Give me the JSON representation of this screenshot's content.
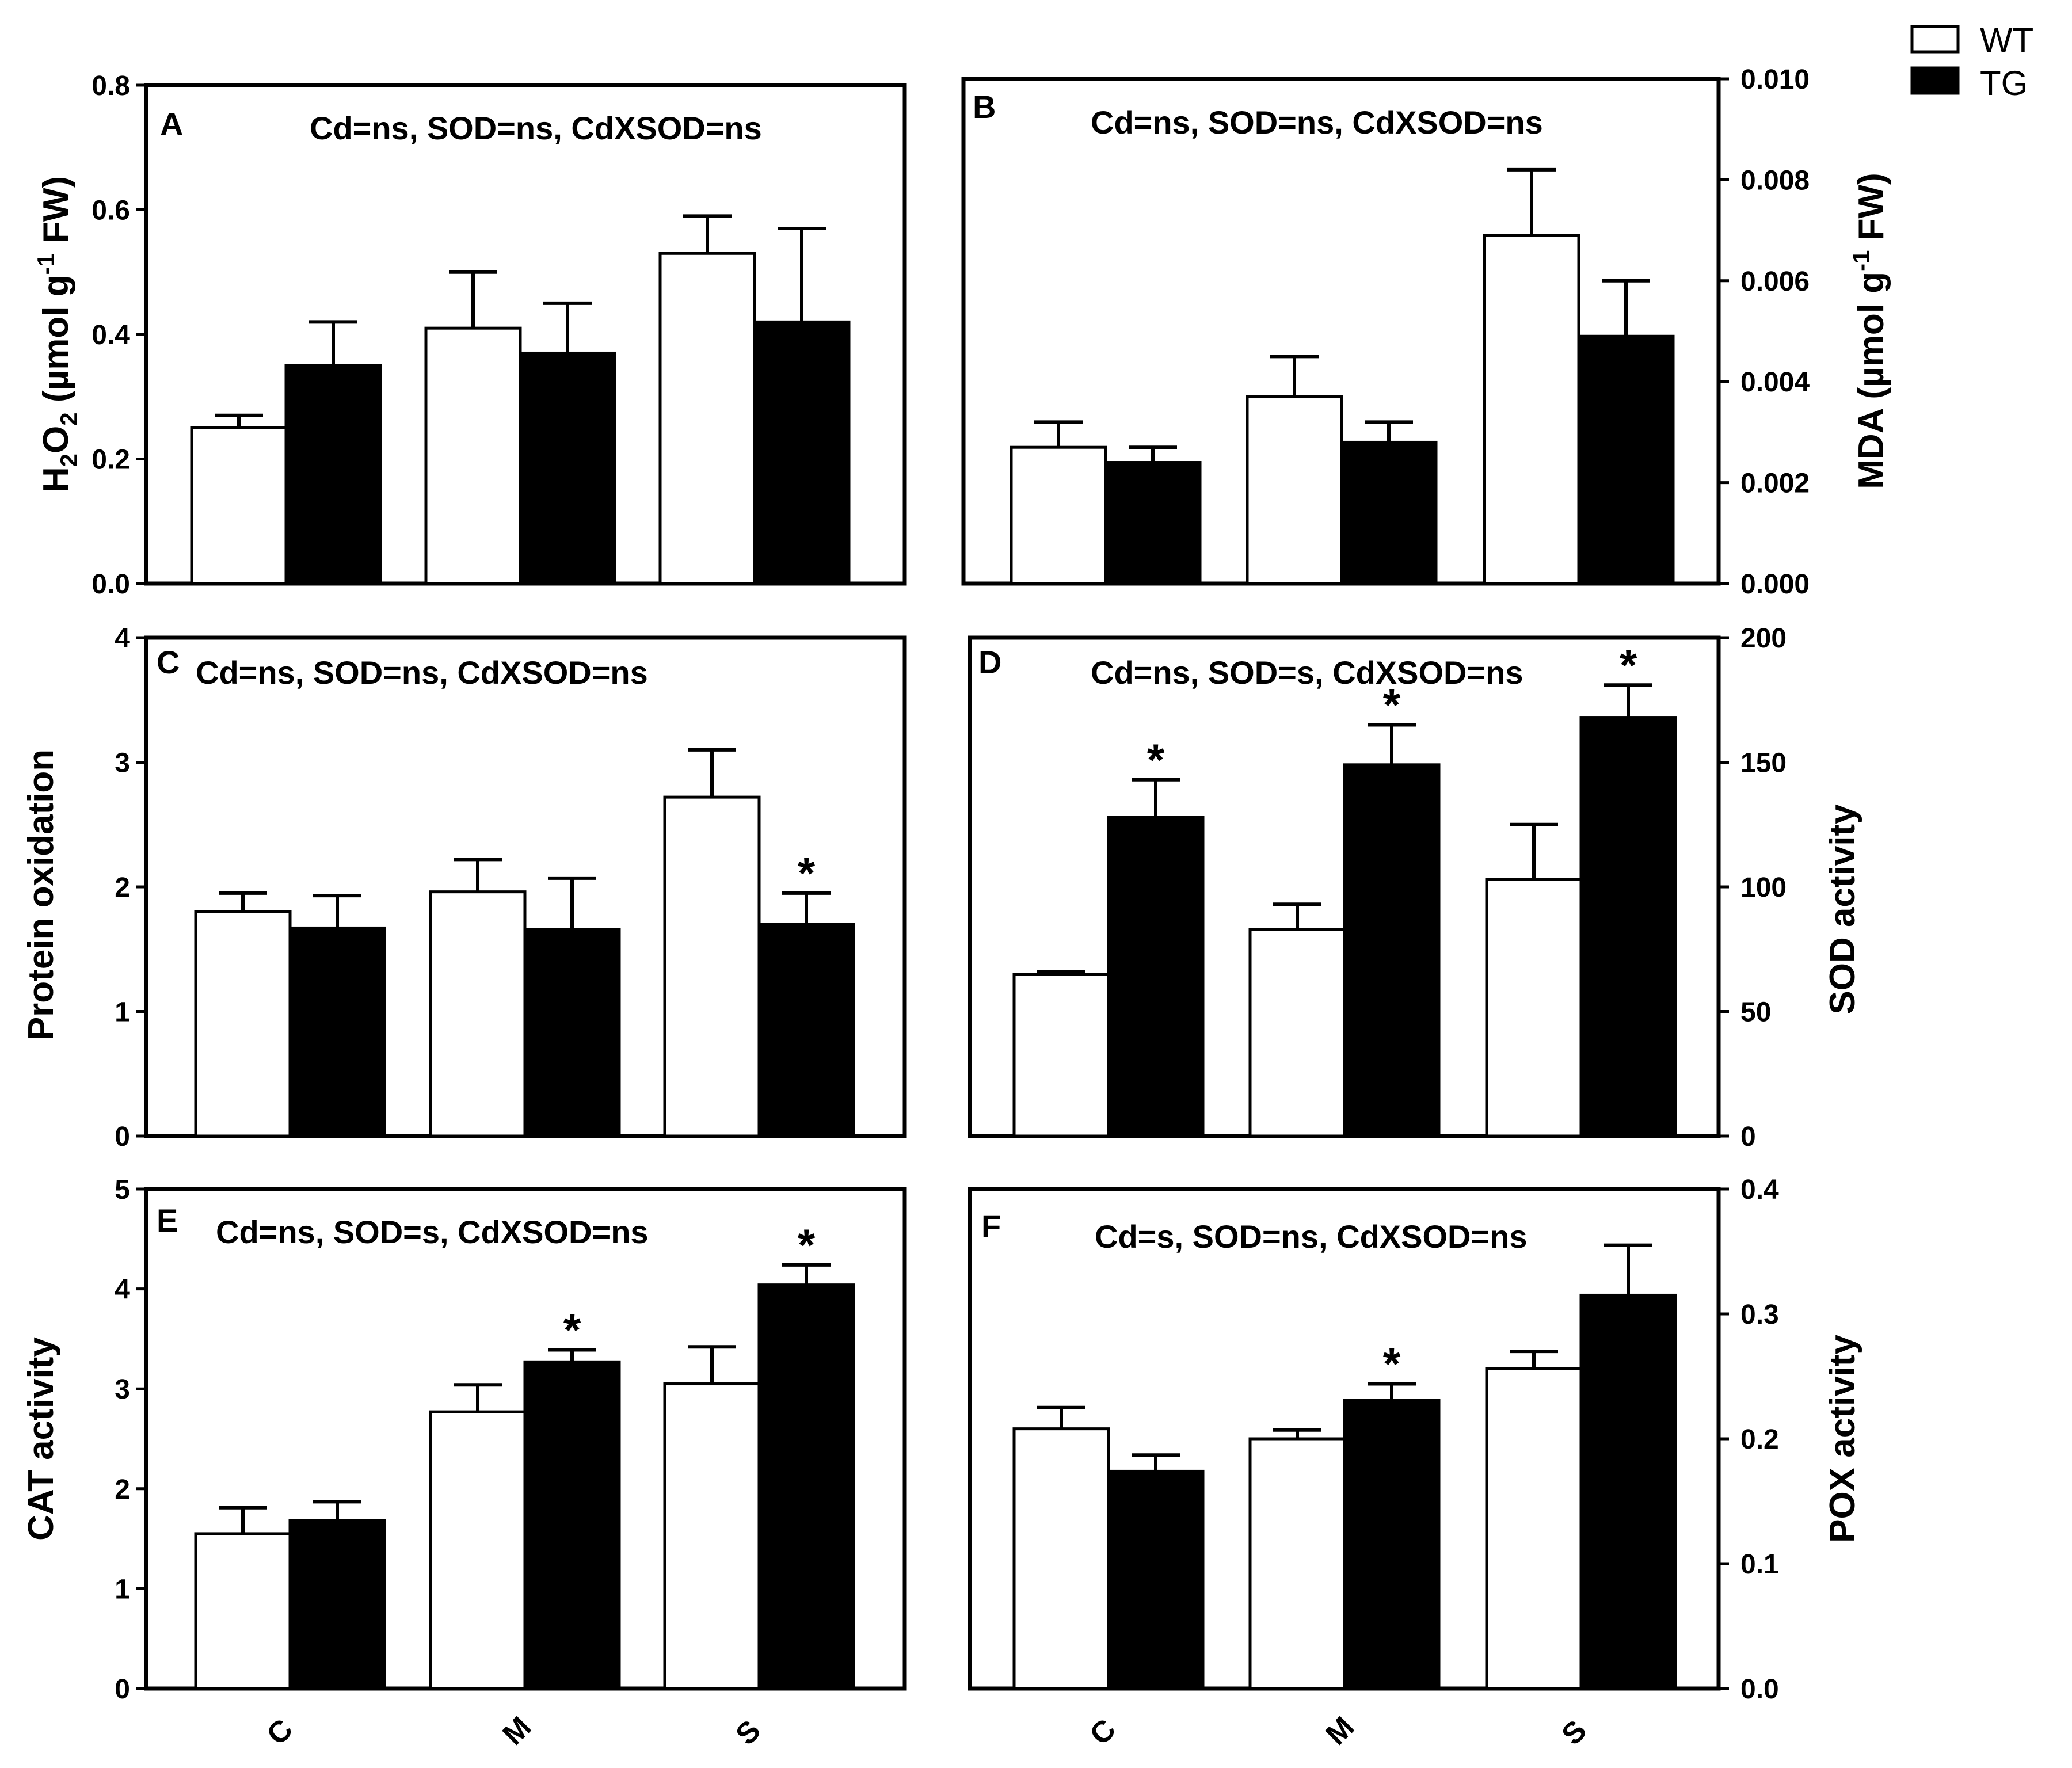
{
  "legend": {
    "entries": [
      {
        "label": "WT",
        "color": "#ffffff"
      },
      {
        "label": "TG",
        "color": "#000000"
      }
    ]
  },
  "chart_data": [
    {
      "type": "bar",
      "panel": "A",
      "stats_text": "Cd=ns, SOD=ns, CdXSOD=ns",
      "ylabel": "H2O2 (µmol g-1 FW)",
      "categories": [
        "C",
        "M",
        "S"
      ],
      "ylim": [
        0,
        0.8
      ],
      "yticks": [
        0.0,
        0.2,
        0.4,
        0.6,
        0.8
      ],
      "tick_labels": [
        "0.0",
        "0.2",
        "0.4",
        "0.6",
        "0.8"
      ],
      "series": [
        {
          "name": "WT",
          "values": [
            0.25,
            0.41,
            0.53
          ],
          "errors": [
            0.02,
            0.09,
            0.06
          ],
          "stars": [
            false,
            false,
            false
          ]
        },
        {
          "name": "TG",
          "values": [
            0.35,
            0.37,
            0.42
          ],
          "errors": [
            0.07,
            0.08,
            0.15
          ],
          "stars": [
            false,
            false,
            false
          ]
        }
      ]
    },
    {
      "type": "bar",
      "panel": "B",
      "stats_text": "Cd=ns, SOD=ns, CdXSOD=ns",
      "ylabel": "MDA (µmol g-1 FW)",
      "categories": [
        "C",
        "M",
        "S"
      ],
      "ylim": [
        0,
        0.01
      ],
      "yticks": [
        0.0,
        0.002,
        0.004,
        0.006,
        0.008,
        0.01
      ],
      "tick_labels": [
        "0.000",
        "0.002",
        "0.004",
        "0.006",
        "0.008",
        "0.010"
      ],
      "series": [
        {
          "name": "WT",
          "values": [
            0.0027,
            0.0037,
            0.0069
          ],
          "errors": [
            0.0005,
            0.0008,
            0.0013
          ],
          "stars": [
            false,
            false,
            false
          ]
        },
        {
          "name": "TG",
          "values": [
            0.0024,
            0.0028,
            0.0049
          ],
          "errors": [
            0.0003,
            0.0004,
            0.0011
          ],
          "stars": [
            false,
            false,
            false
          ]
        }
      ]
    },
    {
      "type": "bar",
      "panel": "C",
      "stats_text": "Cd=ns, SOD=ns, CdXSOD=ns",
      "ylabel": "Protein oxidation",
      "categories": [
        "C",
        "M",
        "S"
      ],
      "ylim": [
        0,
        4
      ],
      "yticks": [
        0,
        1,
        2,
        3,
        4
      ],
      "tick_labels": [
        "0",
        "1",
        "2",
        "3",
        "4"
      ],
      "series": [
        {
          "name": "WT",
          "values": [
            1.8,
            1.96,
            2.72
          ],
          "errors": [
            0.15,
            0.26,
            0.38
          ],
          "stars": [
            false,
            false,
            false
          ]
        },
        {
          "name": "TG",
          "values": [
            1.67,
            1.66,
            1.7
          ],
          "errors": [
            0.26,
            0.41,
            0.25
          ],
          "stars": [
            false,
            false,
            true
          ]
        }
      ]
    },
    {
      "type": "bar",
      "panel": "D",
      "stats_text": "Cd=ns, SOD=s, CdXSOD=ns",
      "ylabel": "SOD activity",
      "categories": [
        "C",
        "M",
        "S"
      ],
      "ylim": [
        0,
        200
      ],
      "yticks": [
        0,
        50,
        100,
        150,
        200
      ],
      "tick_labels": [
        "0",
        "50",
        "100",
        "150",
        "200"
      ],
      "series": [
        {
          "name": "WT",
          "values": [
            65,
            83,
            103
          ],
          "errors": [
            1,
            10,
            22
          ],
          "stars": [
            false,
            false,
            false
          ]
        },
        {
          "name": "TG",
          "values": [
            128,
            149,
            168
          ],
          "errors": [
            15,
            16,
            13
          ],
          "stars": [
            true,
            true,
            true
          ]
        }
      ]
    },
    {
      "type": "bar",
      "panel": "E",
      "stats_text": "Cd=ns, SOD=s, CdXSOD=ns",
      "ylabel": "CAT activity",
      "categories": [
        "C",
        "M",
        "S"
      ],
      "ylim": [
        0,
        5
      ],
      "yticks": [
        0,
        1,
        2,
        3,
        4,
        5
      ],
      "tick_labels": [
        "0",
        "1",
        "2",
        "3",
        "4",
        "5"
      ],
      "series": [
        {
          "name": "WT",
          "values": [
            1.55,
            2.77,
            3.05
          ],
          "errors": [
            0.26,
            0.27,
            0.37
          ],
          "stars": [
            false,
            false,
            false
          ]
        },
        {
          "name": "TG",
          "values": [
            1.68,
            3.27,
            4.04
          ],
          "errors": [
            0.19,
            0.12,
            0.2
          ],
          "stars": [
            false,
            true,
            true
          ]
        }
      ]
    },
    {
      "type": "bar",
      "panel": "F",
      "stats_text": "Cd=s, SOD=ns, CdXSOD=ns",
      "ylabel": "POX activity",
      "categories": [
        "C",
        "M",
        "S"
      ],
      "ylim": [
        0,
        0.4
      ],
      "yticks": [
        0.0,
        0.1,
        0.2,
        0.3,
        0.4
      ],
      "tick_labels": [
        "0.0",
        "0.1",
        "0.2",
        "0.3",
        "0.4"
      ],
      "series": [
        {
          "name": "WT",
          "values": [
            0.208,
            0.2,
            0.256
          ],
          "errors": [
            0.017,
            0.007,
            0.014
          ],
          "stars": [
            false,
            false,
            false
          ]
        },
        {
          "name": "TG",
          "values": [
            0.174,
            0.231,
            0.315
          ],
          "errors": [
            0.013,
            0.013,
            0.04
          ],
          "stars": [
            false,
            true,
            false
          ]
        }
      ]
    }
  ]
}
